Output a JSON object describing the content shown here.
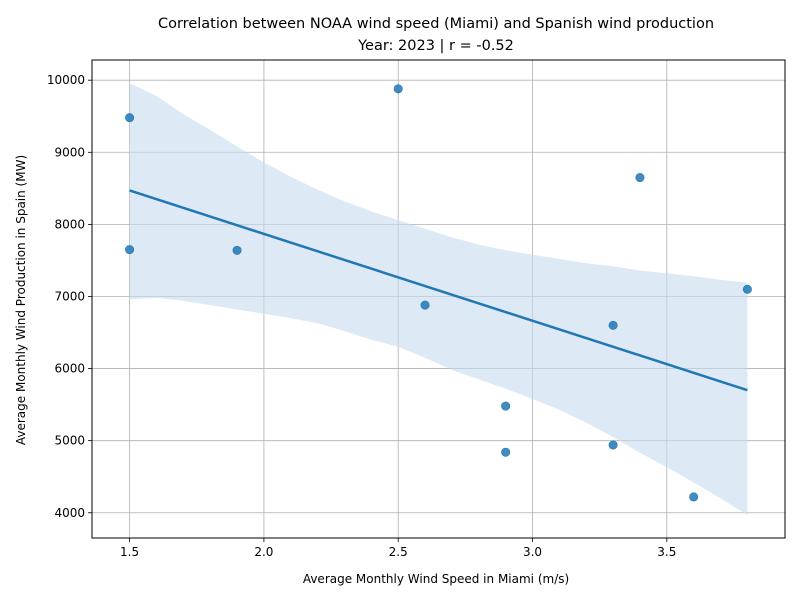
{
  "chart_data": {
    "type": "scatter",
    "title": "Correlation between NOAA wind speed (Miami) and Spanish wind production",
    "subtitle": "Year: 2023 | r = -0.52",
    "xlabel": "Average Monthly Wind Speed in Miami (m/s)",
    "ylabel": "Average Monthly Wind Production in Spain (MW)",
    "xlim": [
      1.36,
      3.94
    ],
    "ylim": [
      3650,
      10280
    ],
    "x_ticks": [
      "1.5",
      "2.0",
      "2.5",
      "3.0",
      "3.5"
    ],
    "y_ticks": [
      "4000",
      "5000",
      "6000",
      "7000",
      "8000",
      "9000",
      "10000"
    ],
    "grid": true,
    "points": [
      {
        "x": 2.5,
        "y": 9880
      },
      {
        "x": 1.5,
        "y": 9480
      },
      {
        "x": 3.4,
        "y": 8650
      },
      {
        "x": 1.5,
        "y": 7650
      },
      {
        "x": 1.9,
        "y": 7640
      },
      {
        "x": 3.8,
        "y": 7100
      },
      {
        "x": 2.6,
        "y": 6880
      },
      {
        "x": 3.3,
        "y": 6600
      },
      {
        "x": 2.9,
        "y": 5480
      },
      {
        "x": 3.3,
        "y": 4940
      },
      {
        "x": 2.9,
        "y": 4840
      },
      {
        "x": 3.6,
        "y": 4220
      }
    ],
    "regression_line": [
      {
        "x": 1.5,
        "y": 8470
      },
      {
        "x": 3.8,
        "y": 5700
      }
    ],
    "confidence_band": {
      "x": [
        1.5,
        1.6,
        1.7,
        1.8,
        1.9,
        2.0,
        2.1,
        2.2,
        2.3,
        2.4,
        2.5,
        2.6,
        2.7,
        2.8,
        2.9,
        3.0,
        3.1,
        3.2,
        3.3,
        3.4,
        3.5,
        3.6,
        3.7,
        3.8
      ],
      "upper": [
        9960,
        9780,
        9530,
        9310,
        9080,
        8860,
        8660,
        8480,
        8320,
        8180,
        8060,
        7940,
        7820,
        7720,
        7640,
        7580,
        7520,
        7460,
        7420,
        7360,
        7320,
        7280,
        7230,
        7190
      ],
      "lower": [
        6960,
        6980,
        6940,
        6880,
        6820,
        6760,
        6700,
        6630,
        6520,
        6400,
        6300,
        6150,
        5980,
        5850,
        5720,
        5580,
        5430,
        5250,
        5050,
        4830,
        4630,
        4420,
        4200,
        3970
      ]
    },
    "colors": {
      "points": "#1f77b4",
      "line": "#1f77b4",
      "band": "#c6dbef",
      "grid": "#b0b0b0"
    }
  }
}
